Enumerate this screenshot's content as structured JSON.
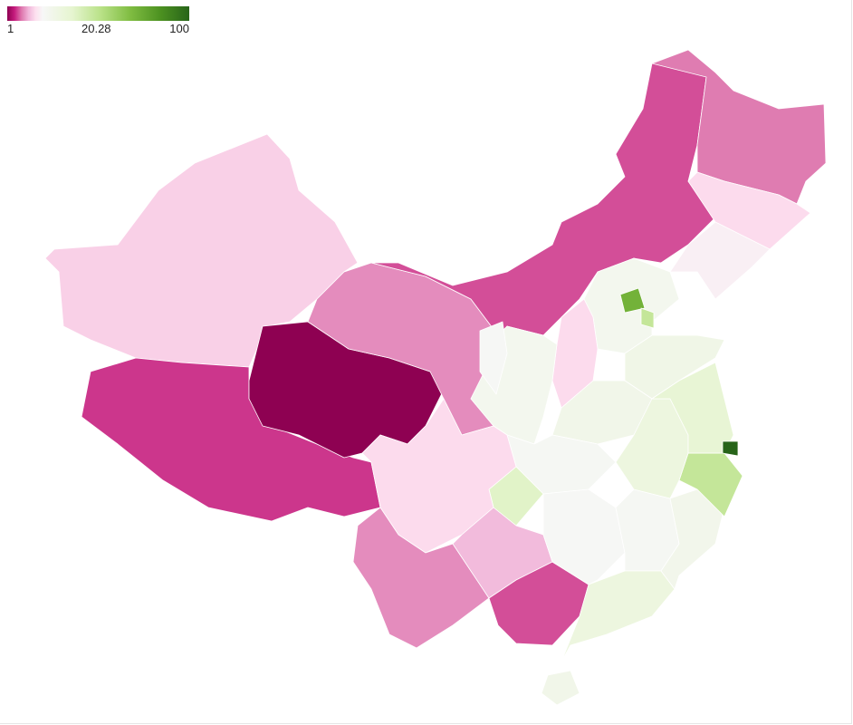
{
  "legend": {
    "min_label": "1",
    "mid_label": "20.28",
    "max_label": "100",
    "min": 1,
    "mid": 20.28,
    "max": 100,
    "colors_low": [
      "#8e0152",
      "#c51b7d",
      "#de77ae",
      "#f1b6da",
      "#fde0ef",
      "#f7f7f7"
    ],
    "colors_high": [
      "#f7f7f7",
      "#e6f5d0",
      "#b8e186",
      "#7fbc41",
      "#4d9221",
      "#276419"
    ]
  },
  "regions": [
    {
      "id": "xinjiang",
      "value": 15
    },
    {
      "id": "tibet",
      "value": 6
    },
    {
      "id": "qinghai",
      "value": 1
    },
    {
      "id": "gansu",
      "value": 10
    },
    {
      "id": "inner-mongolia",
      "value": 7
    },
    {
      "id": "heilongjiang",
      "value": 9
    },
    {
      "id": "jilin",
      "value": 16
    },
    {
      "id": "liaoning",
      "value": 19
    },
    {
      "id": "hebei",
      "value": 24
    },
    {
      "id": "beijing",
      "value": 72
    },
    {
      "id": "tianjin",
      "value": 48
    },
    {
      "id": "shanxi",
      "value": 16
    },
    {
      "id": "shaanxi",
      "value": 24
    },
    {
      "id": "ningxia",
      "value": 21
    },
    {
      "id": "shandong",
      "value": 27
    },
    {
      "id": "henan",
      "value": 26
    },
    {
      "id": "hubei",
      "value": 22
    },
    {
      "id": "chongqing",
      "value": 38
    },
    {
      "id": "sichuan",
      "value": 16
    },
    {
      "id": "yunnan",
      "value": 10
    },
    {
      "id": "guizhou",
      "value": 13
    },
    {
      "id": "guangxi",
      "value": 7
    },
    {
      "id": "hunan",
      "value": 21
    },
    {
      "id": "jiangxi",
      "value": 22
    },
    {
      "id": "guangdong",
      "value": 30
    },
    {
      "id": "hainan",
      "value": 26
    },
    {
      "id": "fujian",
      "value": 25
    },
    {
      "id": "zhejiang",
      "value": 48
    },
    {
      "id": "anhui",
      "value": 30
    },
    {
      "id": "jiangsu",
      "value": 34
    },
    {
      "id": "shanghai",
      "value": 100
    }
  ]
}
